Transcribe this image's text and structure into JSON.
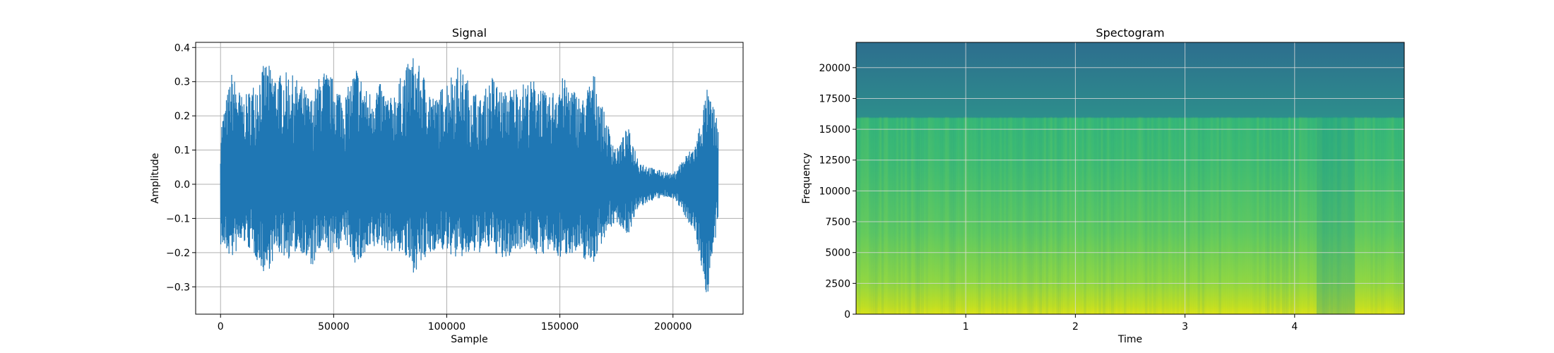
{
  "chart_data": [
    {
      "type": "line",
      "title": "Signal",
      "xlabel": "Sample",
      "ylabel": "Amplitude",
      "xlim": [
        -11000,
        231000
      ],
      "ylim": [
        -0.38,
        0.415
      ],
      "xticks": [
        0,
        50000,
        100000,
        150000,
        200000
      ],
      "xtick_labels": [
        "0",
        "50000",
        "100000",
        "150000",
        "200000"
      ],
      "yticks": [
        -0.3,
        -0.2,
        -0.1,
        0.0,
        0.1,
        0.2,
        0.3,
        0.4
      ],
      "ytick_labels": [
        "−0.3",
        "−0.2",
        "−0.1",
        "0.0",
        "0.1",
        "0.2",
        "0.3",
        "0.4"
      ],
      "grid": true,
      "color": "#1f77b4",
      "envelope": {
        "x": [
          0,
          5000,
          10000,
          15000,
          20000,
          25000,
          30000,
          35000,
          40000,
          45000,
          50000,
          55000,
          60000,
          65000,
          70000,
          75000,
          80000,
          85000,
          90000,
          95000,
          100000,
          105000,
          110000,
          115000,
          120000,
          125000,
          130000,
          135000,
          140000,
          145000,
          150000,
          155000,
          160000,
          165000,
          170000,
          175000,
          180000,
          185000,
          190000,
          195000,
          200000,
          205000,
          210000,
          215000,
          220000
        ],
        "max": [
          0.17,
          0.33,
          0.25,
          0.3,
          0.36,
          0.32,
          0.33,
          0.3,
          0.25,
          0.34,
          0.31,
          0.26,
          0.35,
          0.27,
          0.3,
          0.25,
          0.32,
          0.38,
          0.32,
          0.25,
          0.31,
          0.35,
          0.3,
          0.25,
          0.32,
          0.27,
          0.29,
          0.3,
          0.31,
          0.25,
          0.32,
          0.29,
          0.25,
          0.33,
          0.2,
          0.1,
          0.17,
          0.07,
          0.05,
          0.04,
          0.03,
          0.08,
          0.12,
          0.28,
          0.19
        ],
        "min": [
          -0.18,
          -0.22,
          -0.17,
          -0.21,
          -0.27,
          -0.2,
          -0.22,
          -0.19,
          -0.25,
          -0.19,
          -0.21,
          -0.17,
          -0.24,
          -0.21,
          -0.18,
          -0.2,
          -0.2,
          -0.26,
          -0.23,
          -0.19,
          -0.2,
          -0.22,
          -0.21,
          -0.2,
          -0.19,
          -0.23,
          -0.2,
          -0.18,
          -0.21,
          -0.2,
          -0.22,
          -0.2,
          -0.22,
          -0.23,
          -0.15,
          -0.11,
          -0.15,
          -0.07,
          -0.05,
          -0.04,
          -0.04,
          -0.09,
          -0.15,
          -0.34,
          -0.11
        ]
      }
    },
    {
      "type": "heatmap",
      "title": "Spectogram",
      "xlabel": "Time",
      "ylabel": "Frequency",
      "xlim": [
        0,
        5
      ],
      "ylim": [
        0,
        22050
      ],
      "xticks": [
        1,
        2,
        3,
        4
      ],
      "xtick_labels": [
        "1",
        "2",
        "3",
        "4"
      ],
      "yticks": [
        0,
        2500,
        5000,
        7500,
        10000,
        12500,
        15000,
        17500,
        20000
      ],
      "ytick_labels": [
        "0",
        "2500",
        "5000",
        "7500",
        "10000",
        "12500",
        "15000",
        "17500",
        "20000"
      ],
      "grid": true,
      "colormap": "viridis",
      "cutoff_frequency": 16000,
      "background_color": "#2d6e8e",
      "quiet_band": [
        4.2,
        4.55
      ]
    }
  ]
}
